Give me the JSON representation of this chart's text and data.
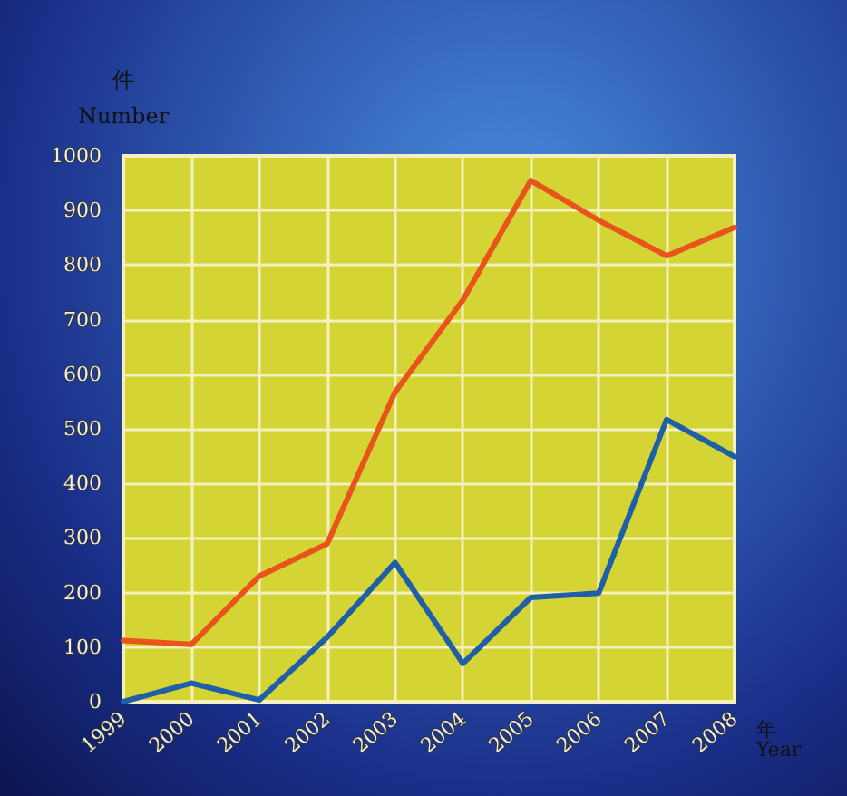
{
  "chart_data": {
    "type": "line",
    "xlabel": "年\nYear",
    "ylabel": "件\nNumber",
    "categories": [
      "1999",
      "2000",
      "2001",
      "2002",
      "2003",
      "2004",
      "2005",
      "2006",
      "2007",
      "2008"
    ],
    "series": [
      {
        "color": "#e8541c",
        "values": [
          112,
          105,
          230,
          289,
          567,
          736,
          955,
          882,
          817,
          869
        ]
      },
      {
        "color": "#1f5fa8",
        "values": [
          0,
          34,
          3,
          118,
          255,
          70,
          191,
          199,
          517,
          449
        ]
      }
    ],
    "ylim": [
      0,
      1000
    ],
    "yticks": [
      0,
      100,
      200,
      300,
      400,
      500,
      600,
      700,
      800,
      900,
      1000
    ],
    "grid": true,
    "marker": "none",
    "line_style": "solid"
  }
}
